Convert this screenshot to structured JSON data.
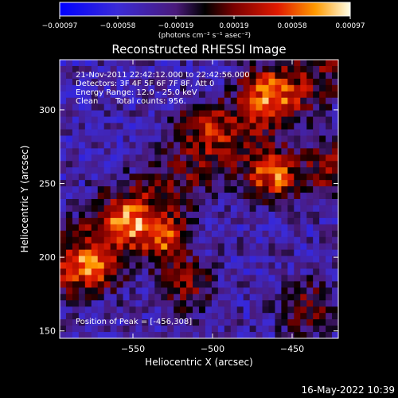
{
  "chart_data": {
    "type": "heatmap",
    "title": "Reconstructed RHESSI Image",
    "xlabel": "Heliocentric X (arcsec)",
    "ylabel": "Heliocentric Y (arcsec)",
    "x_ticks": [
      "−550",
      "−500",
      "−450"
    ],
    "y_ticks": [
      "150",
      "200",
      "250",
      "300"
    ],
    "xlim": [
      -596,
      -421
    ],
    "ylim": [
      145,
      334
    ],
    "colorbar": {
      "label": "(photons cm⁻² s⁻¹ asec⁻²)",
      "ticks": [
        "−0.00097",
        "−0.00058",
        "−0.00019",
        "0.00019",
        "0.00058",
        "0.00097"
      ],
      "range": [
        -0.00097,
        0.00097
      ]
    },
    "annotations": {
      "time": "21-Nov-2011 22:42:12.000 to 22:42:56.000",
      "detectors": "Detectors: 3F 4F 5F 6F 7F 8F, Att 0",
      "energy": "Energy Range: 12.0 - 25.0 keV",
      "clean_label": "Clean",
      "counts": "Total counts: 956.",
      "peak": "Position of Peak = [-456,308]"
    },
    "peak": {
      "x": -456,
      "y": 308
    },
    "sources": [
      {
        "x": -462,
        "y": 255,
        "amp": 0.00097
      },
      {
        "x": -530,
        "y": 212,
        "amp": 0.00082
      },
      {
        "x": -465,
        "y": 312,
        "amp": 0.00075
      },
      {
        "x": -575,
        "y": 192,
        "amp": 0.00072
      },
      {
        "x": -425,
        "y": 260,
        "amp": 0.00065
      },
      {
        "x": -555,
        "y": 225,
        "amp": 0.0006
      },
      {
        "x": -505,
        "y": 290,
        "amp": 0.0005
      },
      {
        "x": -440,
        "y": 165,
        "amp": 0.00055
      },
      {
        "x": -515,
        "y": 180,
        "amp": 0.0005
      }
    ]
  },
  "footer": {
    "timestamp": "16-May-2022 10:39"
  }
}
